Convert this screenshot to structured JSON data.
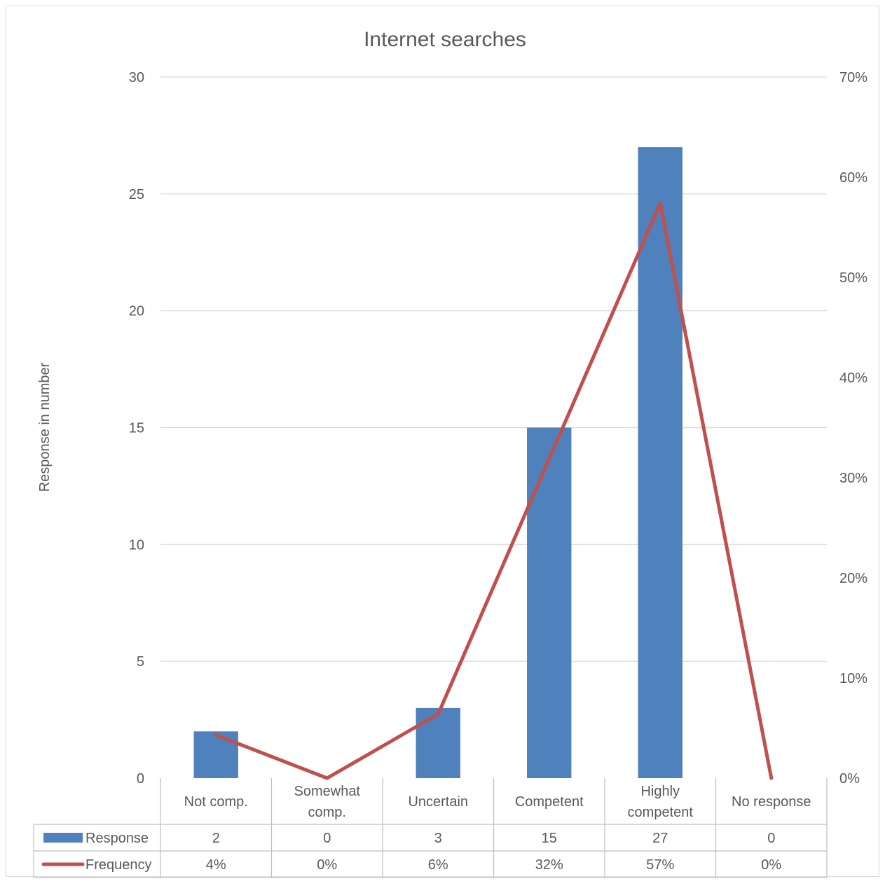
{
  "chart_data": {
    "type": "bar",
    "title": "Internet searches",
    "ylabel": "Response in number",
    "ylim": [
      0,
      30
    ],
    "y_ticks": [
      "0",
      "5",
      "10",
      "15",
      "20",
      "25",
      "30"
    ],
    "y2lim": [
      0,
      0.7
    ],
    "y2_ticks": [
      "0%",
      "10%",
      "20%",
      "30%",
      "40%",
      "50%",
      "60%",
      "70%"
    ],
    "categories": [
      [
        "Not comp."
      ],
      [
        "Somewhat",
        "comp."
      ],
      [
        "Uncertain"
      ],
      [
        "Competent"
      ],
      [
        "Highly",
        "competent"
      ],
      [
        "No response"
      ]
    ],
    "series": [
      {
        "name": "Response",
        "type": "bar",
        "axis": "left",
        "color": "#4f81bd",
        "values": [
          2,
          0,
          3,
          15,
          27,
          0
        ],
        "table_labels": [
          "2",
          "0",
          "3",
          "15",
          "27",
          "0"
        ]
      },
      {
        "name": "Frequency",
        "type": "line",
        "axis": "right",
        "color": "#c0504d",
        "values": [
          0.043,
          0,
          0.064,
          0.319,
          0.574,
          0
        ],
        "table_labels": [
          "4%",
          "0%",
          "6%",
          "32%",
          "57%",
          "0%"
        ]
      }
    ],
    "legend": "data-table-bottom",
    "grid": true
  }
}
